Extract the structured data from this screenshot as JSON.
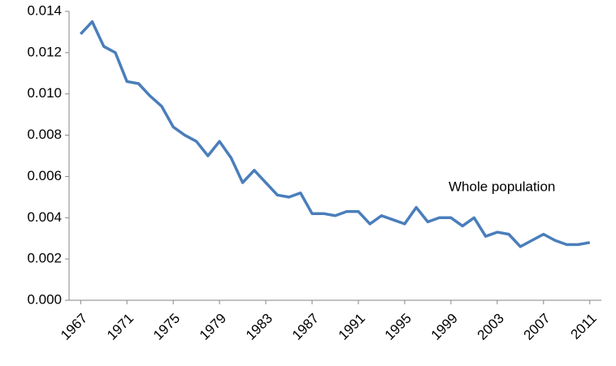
{
  "chart_data": {
    "type": "line",
    "annotation": "Whole population",
    "x": [
      1967,
      1968,
      1969,
      1970,
      1971,
      1972,
      1973,
      1974,
      1975,
      1976,
      1977,
      1978,
      1979,
      1980,
      1981,
      1982,
      1983,
      1984,
      1985,
      1986,
      1987,
      1988,
      1989,
      1990,
      1991,
      1992,
      1993,
      1994,
      1995,
      1996,
      1997,
      1998,
      1999,
      2000,
      2001,
      2002,
      2003,
      2004,
      2005,
      2006,
      2007,
      2008,
      2009,
      2010,
      2011
    ],
    "series": [
      {
        "color": "#4a7ebb",
        "values": [
          0.0129,
          0.0135,
          0.0123,
          0.012,
          0.0106,
          0.0105,
          0.0099,
          0.0094,
          0.0084,
          0.008,
          0.0077,
          0.007,
          0.0077,
          0.0069,
          0.0057,
          0.0063,
          0.0057,
          0.0051,
          0.005,
          0.0052,
          0.0042,
          0.0042,
          0.0041,
          0.0043,
          0.0043,
          0.0037,
          0.0041,
          0.0039,
          0.0037,
          0.0045,
          0.0038,
          0.004,
          0.004,
          0.0036,
          0.004,
          0.0031,
          0.0033,
          0.0032,
          0.0026,
          0.0029,
          0.0032,
          0.0029,
          0.0027,
          0.0027,
          0.0028
        ]
      }
    ],
    "xlim": [
      1966,
      2012
    ],
    "xticks": [
      1967,
      1971,
      1975,
      1979,
      1983,
      1987,
      1991,
      1995,
      1999,
      2003,
      2007,
      2011
    ],
    "ylim": [
      0,
      0.014
    ],
    "yticks": [
      {
        "value": 0,
        "label": "0.000"
      },
      {
        "value": 0.002,
        "label": "0.002"
      },
      {
        "value": 0.004,
        "label": "0.004"
      },
      {
        "value": 0.006,
        "label": "0.006"
      },
      {
        "value": 0.008,
        "label": "0.008"
      },
      {
        "value": 0.01,
        "label": "0.010"
      },
      {
        "value": 0.012,
        "label": "0.012"
      },
      {
        "value": 0.014,
        "label": "0.014"
      }
    ],
    "grid": false
  }
}
